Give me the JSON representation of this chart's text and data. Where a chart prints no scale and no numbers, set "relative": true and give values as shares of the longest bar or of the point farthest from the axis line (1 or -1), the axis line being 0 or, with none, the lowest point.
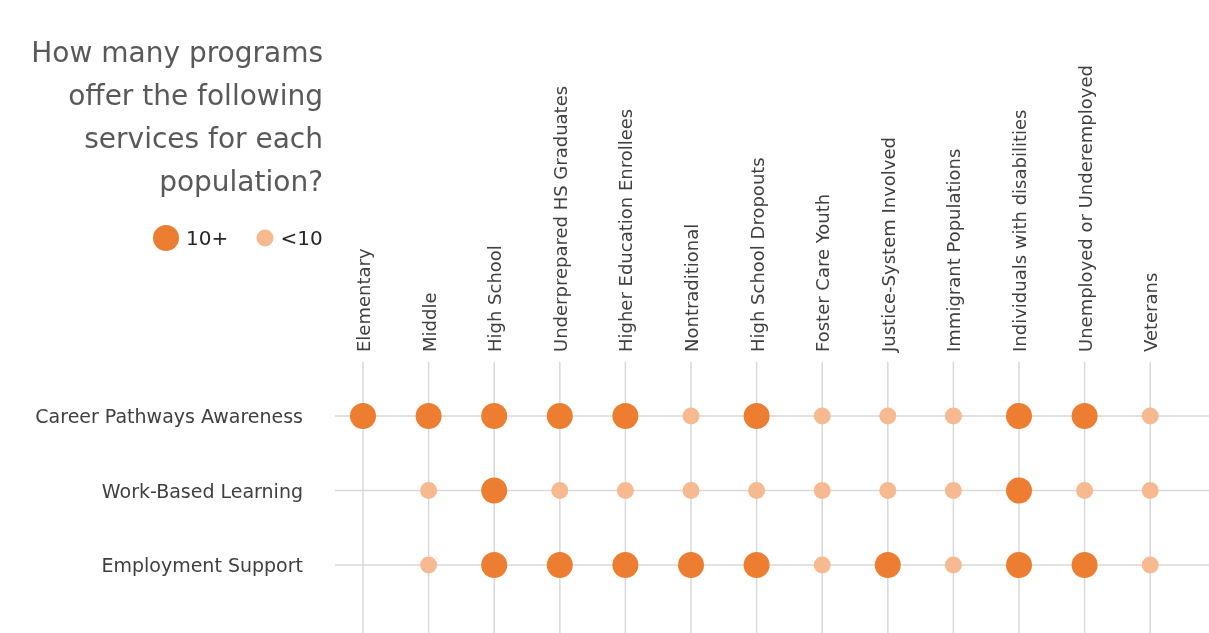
{
  "chart_data": {
    "type": "scatter",
    "title": "How many programs offer the following services for each population?",
    "categories": [
      "Elementary",
      "Middle",
      "High School",
      "Underprepared HS Graduates",
      "Higher Education Enrollees",
      "Nontraditional",
      "High School Dropouts",
      "Foster Care Youth",
      "Justice-System Involved",
      "Immigrant Populations",
      "Individuals with disabilities",
      "Unemployed or Underemployed",
      "Veterans"
    ],
    "relative": true,
    "annotations": [
      "Career Pathways Awareness",
      "Work-Based Learning",
      "Employment Support"
    ],
    "series": [
      {
        "name": "10+",
        "color": "#ed7d31",
        "x": [
          "Elementary",
          "Middle",
          "High School",
          "Underprepared HS Graduates",
          "Higher Education Enrollees",
          "High School Dropouts",
          "Individuals with disabilities",
          "Unemployed or Underemployed",
          "High School",
          "Individuals with disabilities",
          "High School",
          "Underprepared HS Graduates",
          "Higher Education Enrollees",
          "Nontraditional",
          "High School Dropouts",
          "Justice-System Involved",
          "Individuals with disabilities",
          "Unemployed or Underemployed"
        ],
        "values": [
          1,
          1,
          1,
          1,
          1,
          1,
          1,
          1,
          0.5,
          0.5,
          0,
          0,
          0,
          0,
          0,
          0,
          0,
          0
        ]
      },
      {
        "name": "<10",
        "color": "#f6b990",
        "x": [
          "Nontraditional",
          "Foster Care Youth",
          "Justice-System Involved",
          "Immigrant Populations",
          "Veterans",
          "Middle",
          "Underprepared HS Graduates",
          "Higher Education Enrollees",
          "Nontraditional",
          "High School Dropouts",
          "Foster Care Youth",
          "Justice-System Involved",
          "Immigrant Populations",
          "Unemployed or Underemployed",
          "Veterans",
          "Middle",
          "Foster Care Youth",
          "Immigrant Populations",
          "Veterans"
        ],
        "values": [
          1,
          1,
          1,
          1,
          1,
          0.5,
          0.5,
          0.5,
          0.5,
          0.5,
          0.5,
          0.5,
          0.5,
          0.5,
          0.5,
          0,
          0,
          0,
          0
        ]
      }
    ],
    "marker": "circle",
    "grid": true,
    "legend": "top left"
  }
}
